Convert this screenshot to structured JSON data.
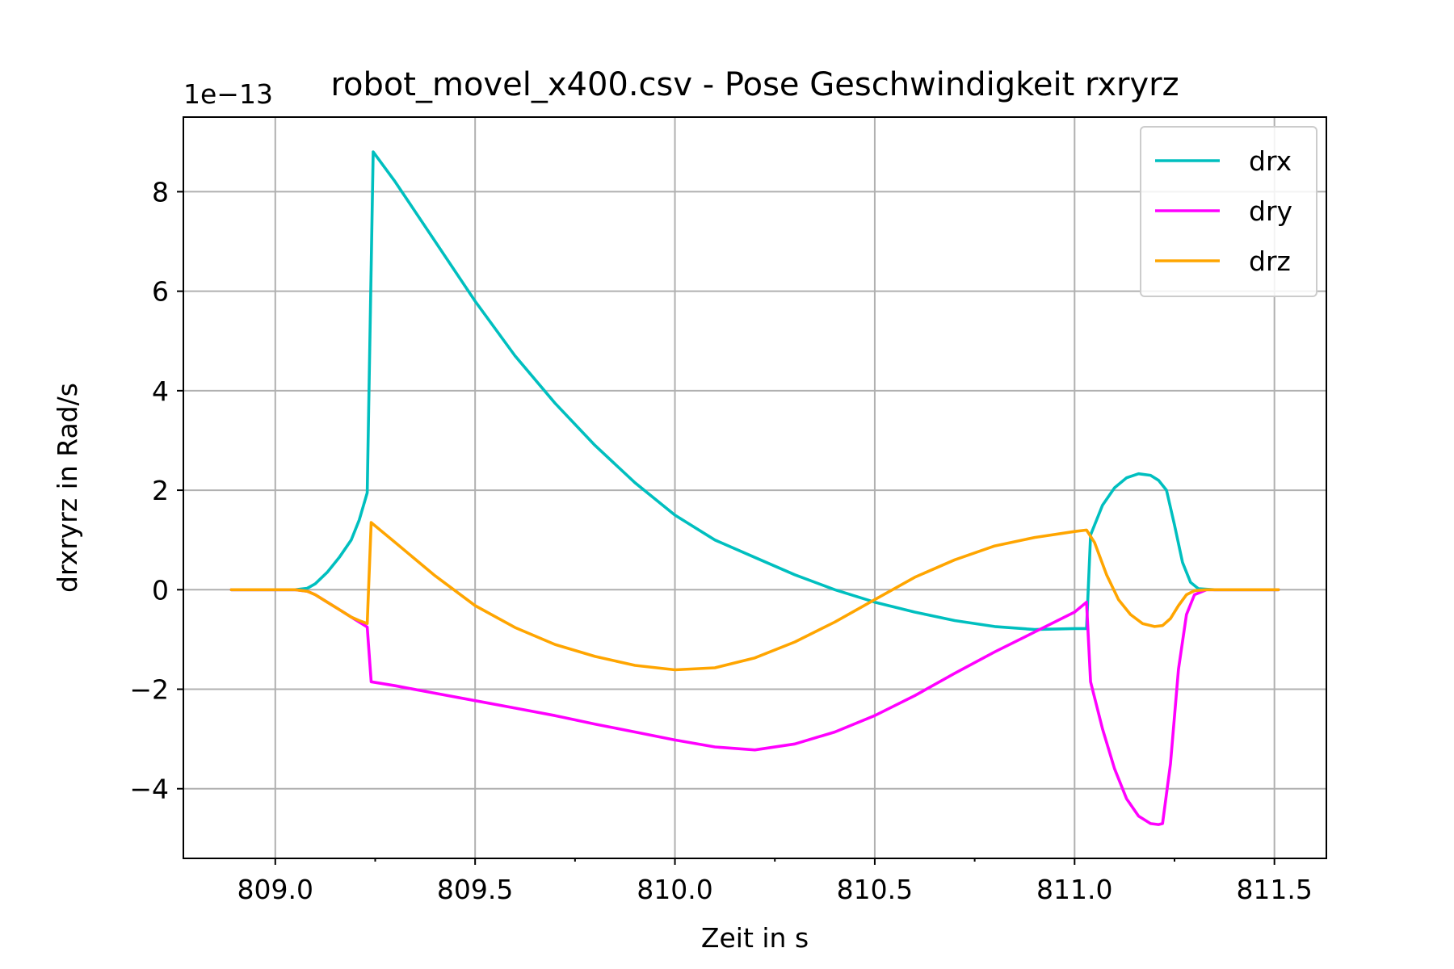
{
  "chart_data": {
    "type": "line",
    "title": "robot_movel_x400.csv - Pose Geschwindigkeit rxryrz",
    "xlabel": "Zeit in s",
    "ylabel": "drxryrz in Rad/s",
    "offset_text": "1e−13",
    "xlim": [
      808.77,
      811.63
    ],
    "ylim": [
      -5.4,
      9.5
    ],
    "xticks": [
      809.0,
      809.5,
      810.0,
      810.5,
      811.0,
      811.5
    ],
    "xtick_labels": [
      "809.0",
      "809.5",
      "810.0",
      "810.5",
      "811.0",
      "811.5"
    ],
    "yticks": [
      -4,
      -2,
      0,
      2,
      4,
      6,
      8
    ],
    "ytick_labels": [
      "−4",
      "−2",
      "0",
      "2",
      "4",
      "6",
      "8"
    ],
    "grid": true,
    "legend": "top-right",
    "series": [
      {
        "name": "drx",
        "color": "#00bfbf",
        "points": [
          [
            808.89,
            0
          ],
          [
            809.0,
            0
          ],
          [
            809.05,
            0
          ],
          [
            809.08,
            0.03
          ],
          [
            809.1,
            0.12
          ],
          [
            809.13,
            0.35
          ],
          [
            809.16,
            0.65
          ],
          [
            809.19,
            1.0
          ],
          [
            809.21,
            1.4
          ],
          [
            809.23,
            1.95
          ],
          [
            809.245,
            8.8
          ],
          [
            809.3,
            8.2
          ],
          [
            809.4,
            7.0
          ],
          [
            809.5,
            5.8
          ],
          [
            809.6,
            4.7
          ],
          [
            809.7,
            3.75
          ],
          [
            809.8,
            2.9
          ],
          [
            809.9,
            2.15
          ],
          [
            810.0,
            1.5
          ],
          [
            810.1,
            1.0
          ],
          [
            810.2,
            0.65
          ],
          [
            810.3,
            0.3
          ],
          [
            810.4,
            0.0
          ],
          [
            810.5,
            -0.25
          ],
          [
            810.6,
            -0.45
          ],
          [
            810.7,
            -0.62
          ],
          [
            810.8,
            -0.74
          ],
          [
            810.9,
            -0.8
          ],
          [
            811.0,
            -0.78
          ],
          [
            811.03,
            -0.78
          ],
          [
            811.04,
            1.1
          ],
          [
            811.07,
            1.7
          ],
          [
            811.1,
            2.05
          ],
          [
            811.13,
            2.25
          ],
          [
            811.16,
            2.33
          ],
          [
            811.19,
            2.3
          ],
          [
            811.21,
            2.2
          ],
          [
            811.23,
            2.0
          ],
          [
            811.25,
            1.3
          ],
          [
            811.27,
            0.55
          ],
          [
            811.29,
            0.15
          ],
          [
            811.31,
            0.02
          ],
          [
            811.35,
            0
          ],
          [
            811.51,
            0
          ]
        ]
      },
      {
        "name": "dry",
        "color": "#ff00ff",
        "points": [
          [
            808.89,
            0
          ],
          [
            809.0,
            0
          ],
          [
            809.05,
            0
          ],
          [
            809.08,
            -0.03
          ],
          [
            809.1,
            -0.1
          ],
          [
            809.13,
            -0.25
          ],
          [
            809.16,
            -0.4
          ],
          [
            809.19,
            -0.55
          ],
          [
            809.21,
            -0.65
          ],
          [
            809.23,
            -0.75
          ],
          [
            809.24,
            -1.85
          ],
          [
            809.3,
            -1.93
          ],
          [
            809.4,
            -2.08
          ],
          [
            809.5,
            -2.23
          ],
          [
            809.6,
            -2.38
          ],
          [
            809.7,
            -2.53
          ],
          [
            809.8,
            -2.7
          ],
          [
            809.9,
            -2.86
          ],
          [
            810.0,
            -3.02
          ],
          [
            810.1,
            -3.16
          ],
          [
            810.2,
            -3.22
          ],
          [
            810.3,
            -3.1
          ],
          [
            810.4,
            -2.86
          ],
          [
            810.5,
            -2.53
          ],
          [
            810.6,
            -2.13
          ],
          [
            810.7,
            -1.68
          ],
          [
            810.8,
            -1.25
          ],
          [
            810.9,
            -0.85
          ],
          [
            811.0,
            -0.45
          ],
          [
            811.03,
            -0.25
          ],
          [
            811.04,
            -1.85
          ],
          [
            811.07,
            -2.8
          ],
          [
            811.1,
            -3.6
          ],
          [
            811.13,
            -4.2
          ],
          [
            811.16,
            -4.55
          ],
          [
            811.19,
            -4.7
          ],
          [
            811.21,
            -4.72
          ],
          [
            811.22,
            -4.7
          ],
          [
            811.24,
            -3.5
          ],
          [
            811.26,
            -1.6
          ],
          [
            811.28,
            -0.5
          ],
          [
            811.3,
            -0.1
          ],
          [
            811.33,
            0
          ],
          [
            811.51,
            0
          ]
        ]
      },
      {
        "name": "drz",
        "color": "#ffa500",
        "points": [
          [
            808.89,
            0
          ],
          [
            809.0,
            0
          ],
          [
            809.05,
            0
          ],
          [
            809.08,
            -0.03
          ],
          [
            809.1,
            -0.1
          ],
          [
            809.13,
            -0.25
          ],
          [
            809.16,
            -0.4
          ],
          [
            809.19,
            -0.55
          ],
          [
            809.21,
            -0.62
          ],
          [
            809.23,
            -0.68
          ],
          [
            809.24,
            1.35
          ],
          [
            809.3,
            0.95
          ],
          [
            809.4,
            0.28
          ],
          [
            809.5,
            -0.32
          ],
          [
            809.6,
            -0.76
          ],
          [
            809.7,
            -1.1
          ],
          [
            809.8,
            -1.34
          ],
          [
            809.9,
            -1.52
          ],
          [
            810.0,
            -1.61
          ],
          [
            810.1,
            -1.57
          ],
          [
            810.2,
            -1.37
          ],
          [
            810.3,
            -1.05
          ],
          [
            810.4,
            -0.65
          ],
          [
            810.5,
            -0.2
          ],
          [
            810.6,
            0.25
          ],
          [
            810.7,
            0.6
          ],
          [
            810.8,
            0.88
          ],
          [
            810.9,
            1.05
          ],
          [
            811.0,
            1.17
          ],
          [
            811.03,
            1.2
          ],
          [
            811.05,
            0.95
          ],
          [
            811.08,
            0.3
          ],
          [
            811.11,
            -0.2
          ],
          [
            811.14,
            -0.5
          ],
          [
            811.17,
            -0.68
          ],
          [
            811.2,
            -0.74
          ],
          [
            811.22,
            -0.72
          ],
          [
            811.24,
            -0.58
          ],
          [
            811.26,
            -0.32
          ],
          [
            811.28,
            -0.1
          ],
          [
            811.3,
            -0.02
          ],
          [
            811.33,
            0
          ],
          [
            811.51,
            0
          ]
        ]
      }
    ]
  }
}
